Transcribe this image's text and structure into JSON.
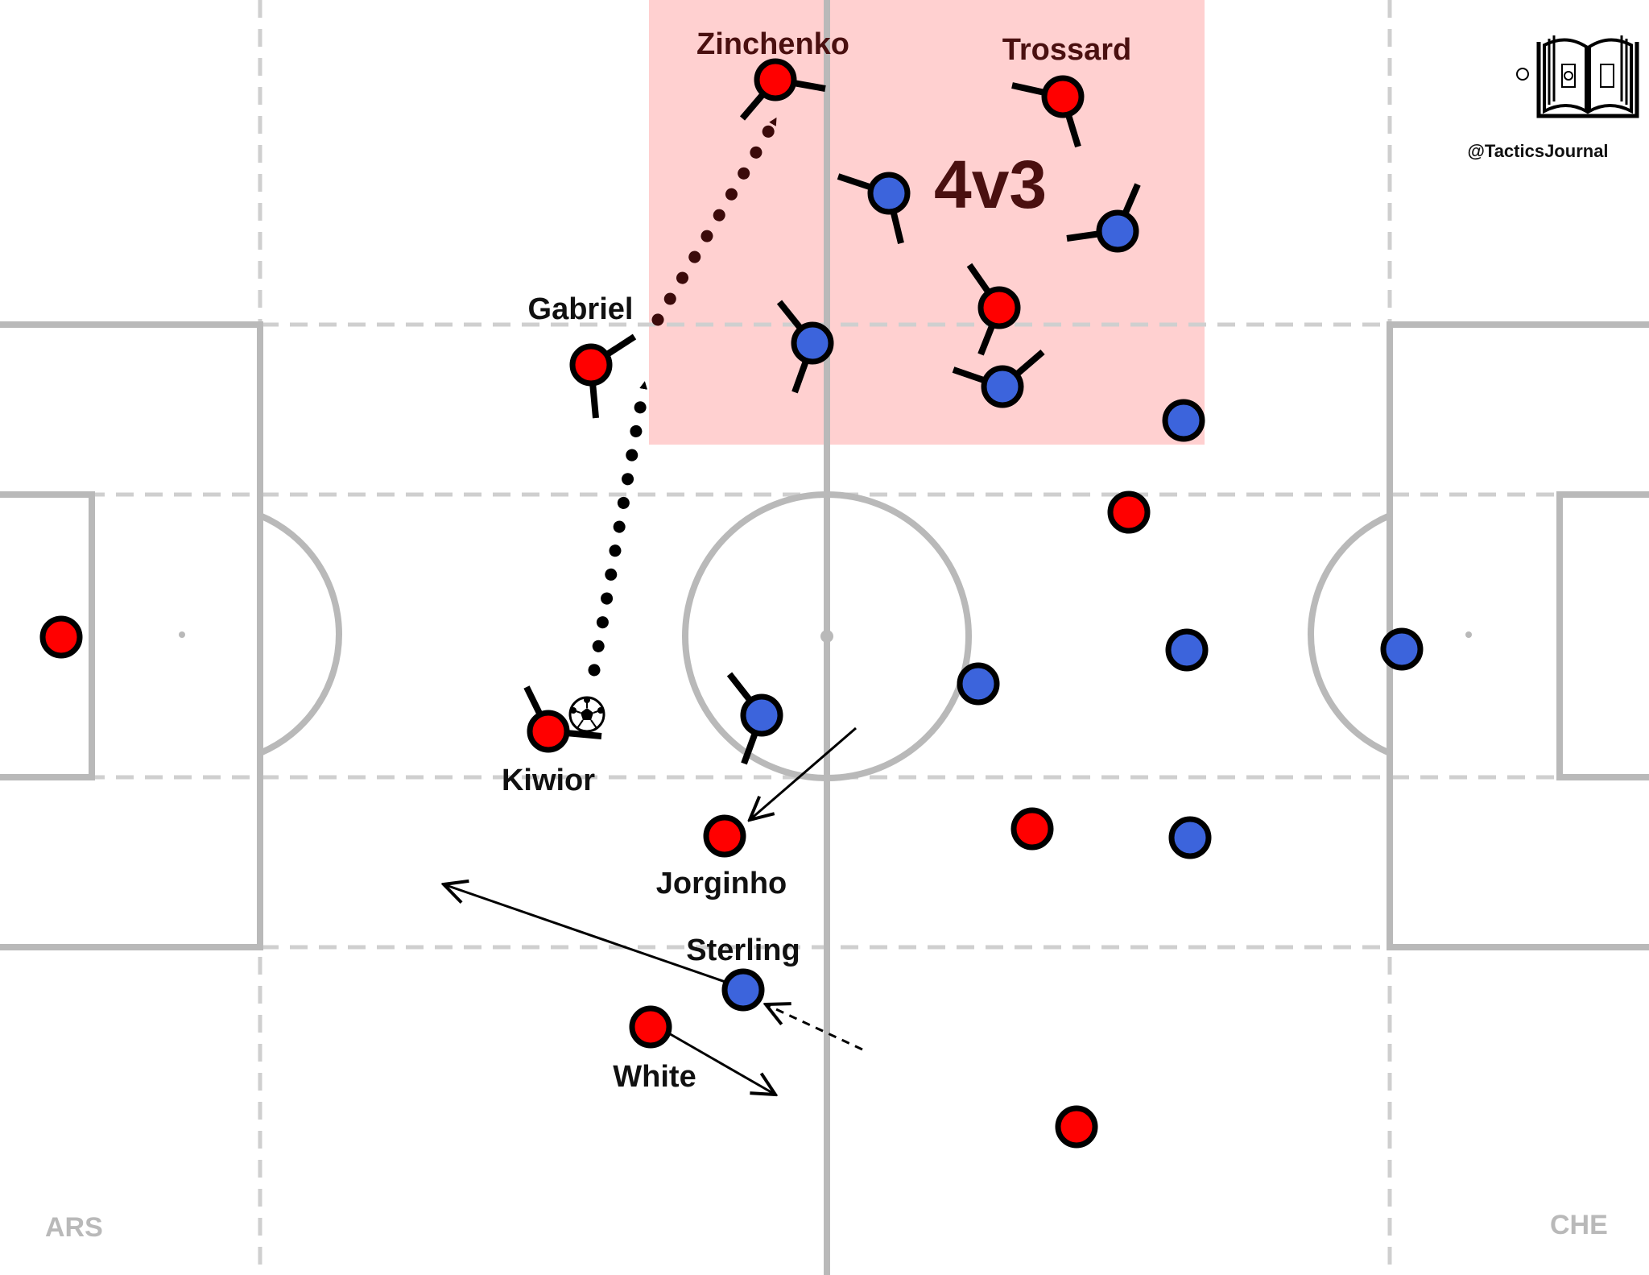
{
  "diagram": {
    "overload_label": "4v3",
    "credit": "@TacticsJournal",
    "teams": {
      "left": "ARS",
      "right": "CHE"
    },
    "colors": {
      "home": "#ff0000",
      "away": "#3c64dc",
      "zone": "#ffc8c8",
      "lines": "#b9b9b9",
      "pass_line": "#3b0a0a"
    },
    "players": {
      "zinchenko": "Zinchenko",
      "trossard": "Trossard",
      "gabriel": "Gabriel",
      "kiwior": "Kiwior",
      "jorginho": "Jorginho",
      "sterling": "Sterling",
      "white": "White"
    }
  }
}
